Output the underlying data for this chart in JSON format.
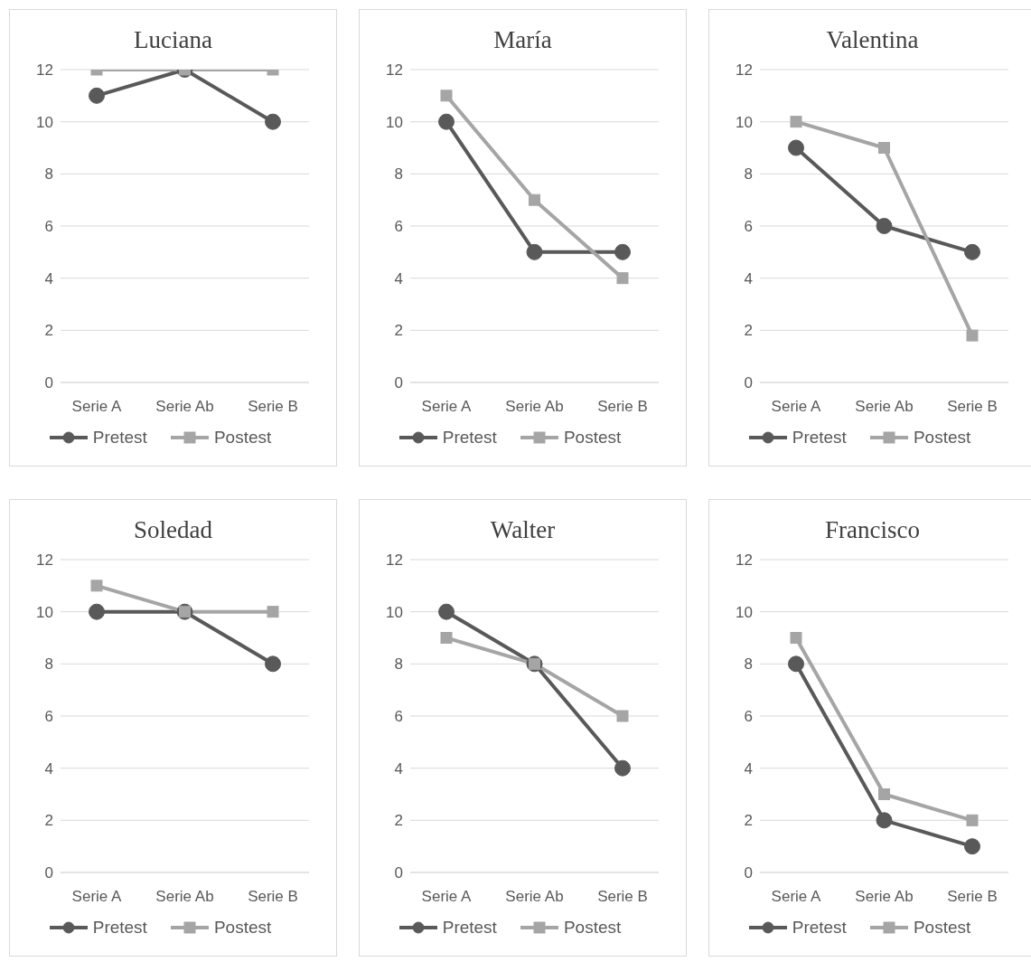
{
  "chart_data": [
    {
      "type": "line",
      "title": "Luciana",
      "categories": [
        "Serie A",
        "Serie Ab",
        "Serie B"
      ],
      "series": [
        {
          "name": "Pretest",
          "color": "#595959",
          "marker": "circle",
          "values": [
            11,
            12,
            10
          ]
        },
        {
          "name": "Postest",
          "color": "#a5a5a5",
          "marker": "square",
          "values": [
            12,
            12,
            12
          ]
        }
      ],
      "ylim": [
        0,
        12
      ],
      "yticks": [
        0,
        2,
        4,
        6,
        8,
        10,
        12
      ],
      "grid": "y",
      "legend": "bottom"
    },
    {
      "type": "line",
      "title": "María",
      "categories": [
        "Serie A",
        "Serie Ab",
        "Serie B"
      ],
      "series": [
        {
          "name": "Pretest",
          "color": "#595959",
          "marker": "circle",
          "values": [
            10,
            5,
            5
          ]
        },
        {
          "name": "Postest",
          "color": "#a5a5a5",
          "marker": "square",
          "values": [
            11,
            7,
            4
          ]
        }
      ],
      "ylim": [
        0,
        12
      ],
      "yticks": [
        0,
        2,
        4,
        6,
        8,
        10,
        12
      ],
      "grid": "y",
      "legend": "bottom"
    },
    {
      "type": "line",
      "title": "Valentina",
      "categories": [
        "Serie A",
        "Serie Ab",
        "Serie B"
      ],
      "series": [
        {
          "name": "Pretest",
          "color": "#595959",
          "marker": "circle",
          "values": [
            9,
            6,
            5
          ]
        },
        {
          "name": "Postest",
          "color": "#a5a5a5",
          "marker": "square",
          "values": [
            10,
            9,
            1.8
          ]
        }
      ],
      "ylim": [
        0,
        12
      ],
      "yticks": [
        0,
        2,
        4,
        6,
        8,
        10,
        12
      ],
      "grid": "y",
      "legend": "bottom"
    },
    {
      "type": "line",
      "title": "Soledad",
      "categories": [
        "Serie A",
        "Serie Ab",
        "Serie B"
      ],
      "series": [
        {
          "name": "Pretest",
          "color": "#595959",
          "marker": "circle",
          "values": [
            10,
            10,
            8
          ]
        },
        {
          "name": "Postest",
          "color": "#a5a5a5",
          "marker": "square",
          "values": [
            11,
            10,
            10
          ]
        }
      ],
      "ylim": [
        0,
        12
      ],
      "yticks": [
        0,
        2,
        4,
        6,
        8,
        10,
        12
      ],
      "grid": "y",
      "legend": "bottom"
    },
    {
      "type": "line",
      "title": "Walter",
      "categories": [
        "Serie A",
        "Serie Ab",
        "Serie B"
      ],
      "series": [
        {
          "name": "Pretest",
          "color": "#595959",
          "marker": "circle",
          "values": [
            10,
            8,
            4
          ]
        },
        {
          "name": "Postest",
          "color": "#a5a5a5",
          "marker": "square",
          "values": [
            9,
            8,
            6
          ]
        }
      ],
      "ylim": [
        0,
        12
      ],
      "yticks": [
        0,
        2,
        4,
        6,
        8,
        10,
        12
      ],
      "grid": "y",
      "legend": "bottom"
    },
    {
      "type": "line",
      "title": "Francisco",
      "categories": [
        "Serie A",
        "Serie Ab",
        "Serie B"
      ],
      "series": [
        {
          "name": "Pretest",
          "color": "#595959",
          "marker": "circle",
          "values": [
            8,
            2,
            1
          ]
        },
        {
          "name": "Postest",
          "color": "#a5a5a5",
          "marker": "square",
          "values": [
            9,
            3,
            2
          ]
        }
      ],
      "ylim": [
        0,
        12
      ],
      "yticks": [
        0,
        2,
        4,
        6,
        8,
        10,
        12
      ],
      "grid": "y",
      "legend": "bottom"
    }
  ]
}
